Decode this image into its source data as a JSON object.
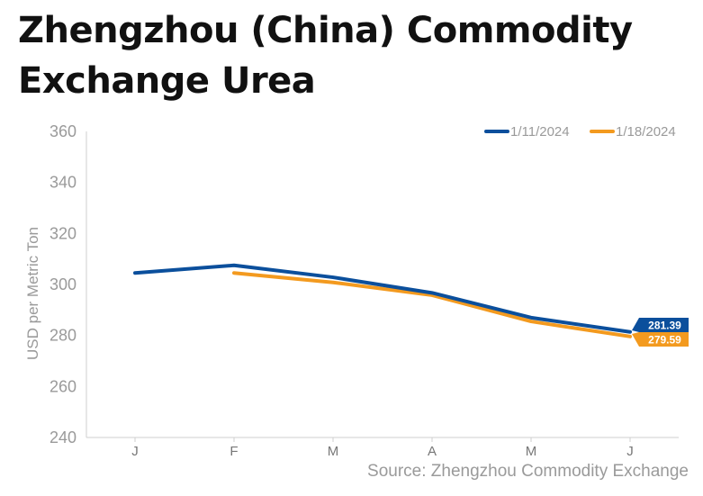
{
  "title_lines": [
    "Zhengzhou (China) Commodity",
    "Exchange Urea"
  ],
  "source": "Source: Zhengzhou Commodity Exchange",
  "chart_data": {
    "type": "line",
    "ylabel": "USD per Metric Ton",
    "ylim": [
      240,
      360
    ],
    "yticks": [
      240,
      260,
      280,
      300,
      320,
      340,
      360
    ],
    "categories": [
      "J",
      "F",
      "M",
      "A",
      "M",
      "J"
    ],
    "grid": false,
    "legend_position": "top-right",
    "series": [
      {
        "name": "1/11/2024",
        "color": "#0b4f9c",
        "values": [
          304.5,
          307.5,
          302.8,
          296.7,
          287.0,
          281.39
        ],
        "end_label": "281.39"
      },
      {
        "name": "1/18/2024",
        "color": "#f39a1f",
        "values": [
          null,
          304.5,
          300.8,
          295.8,
          285.5,
          279.59
        ],
        "end_label": "279.59"
      }
    ]
  }
}
